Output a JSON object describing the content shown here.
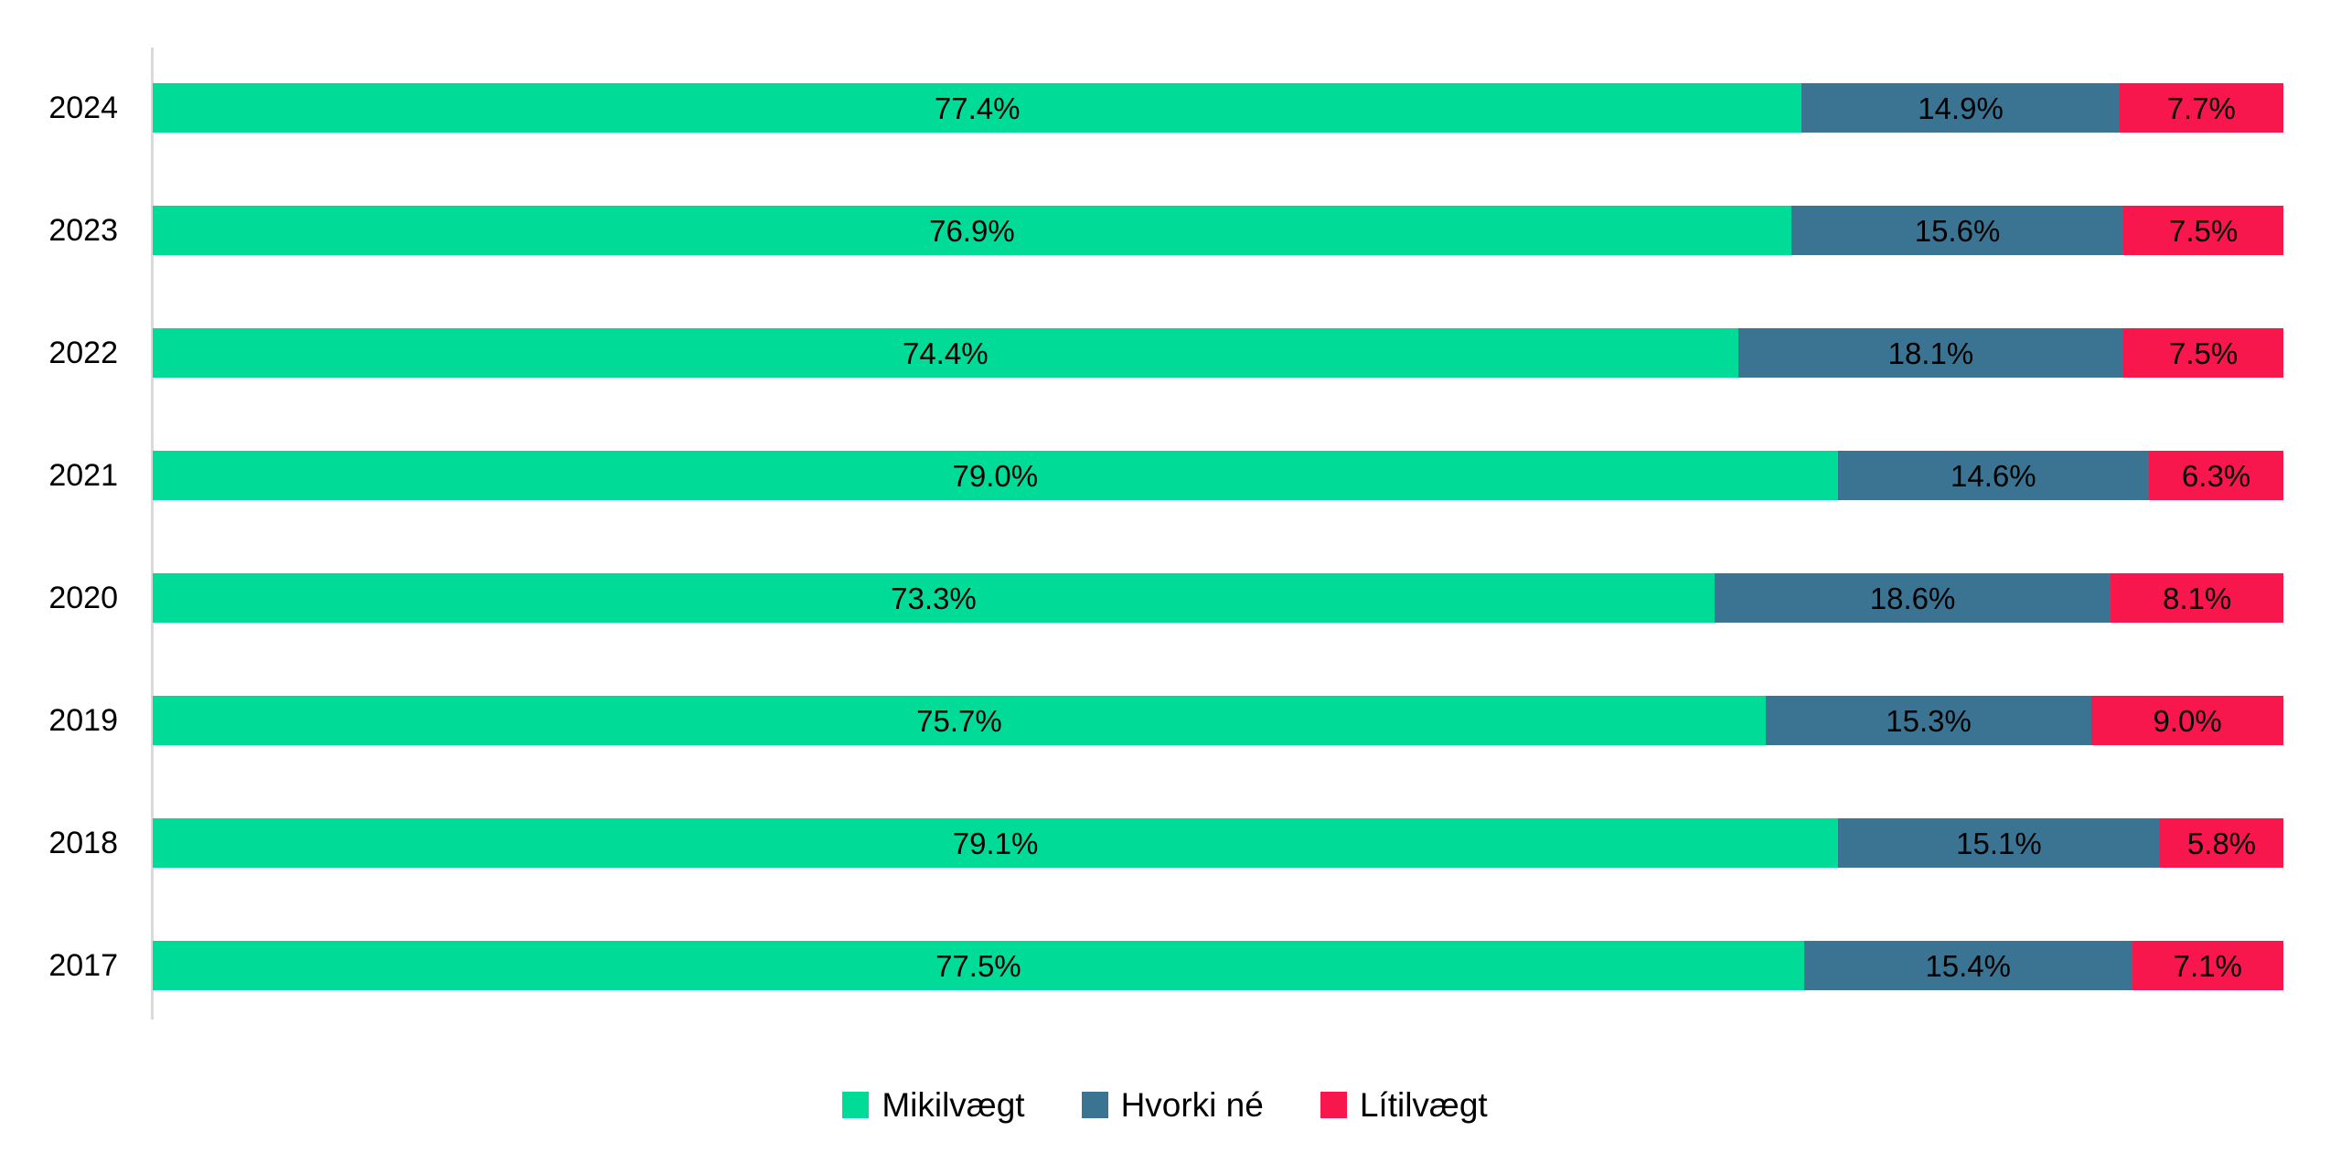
{
  "chart_data": {
    "type": "bar",
    "orientation": "horizontal",
    "stacked": true,
    "title": "",
    "xlabel": "",
    "ylabel": "",
    "xlim": [
      0,
      100
    ],
    "grid": false,
    "legend_position": "bottom",
    "value_suffix": "%",
    "axis_line_color": "#D9D9D9",
    "label_color": "#000000",
    "categories": [
      "2024",
      "2023",
      "2022",
      "2021",
      "2020",
      "2019",
      "2018",
      "2017"
    ],
    "series": [
      {
        "name": "Mikilvægt",
        "color": "#00DB98",
        "values": [
          77.4,
          76.9,
          74.4,
          79.0,
          73.3,
          75.7,
          79.1,
          77.5
        ]
      },
      {
        "name": "Hvorki né",
        "color": "#3A7492",
        "values": [
          14.9,
          15.6,
          18.1,
          14.6,
          18.6,
          15.3,
          15.1,
          15.4
        ]
      },
      {
        "name": "Lítilvægt",
        "color": "#F7174C",
        "values": [
          7.7,
          7.5,
          7.5,
          6.3,
          8.1,
          9.0,
          5.8,
          7.1
        ]
      }
    ],
    "data_labels": [
      [
        "77.4%",
        "14.9%",
        "7.7%"
      ],
      [
        "76.9%",
        "15.6%",
        "7.5%"
      ],
      [
        "74.4%",
        "18.1%",
        "7.5%"
      ],
      [
        "79.0%",
        "14.6%",
        "6.3%"
      ],
      [
        "73.3%",
        "18.6%",
        "8.1%"
      ],
      [
        "75.7%",
        "15.3%",
        "9.0%"
      ],
      [
        "79.1%",
        "15.1%",
        "5.8%"
      ],
      [
        "77.5%",
        "15.4%",
        "7.1%"
      ]
    ]
  }
}
